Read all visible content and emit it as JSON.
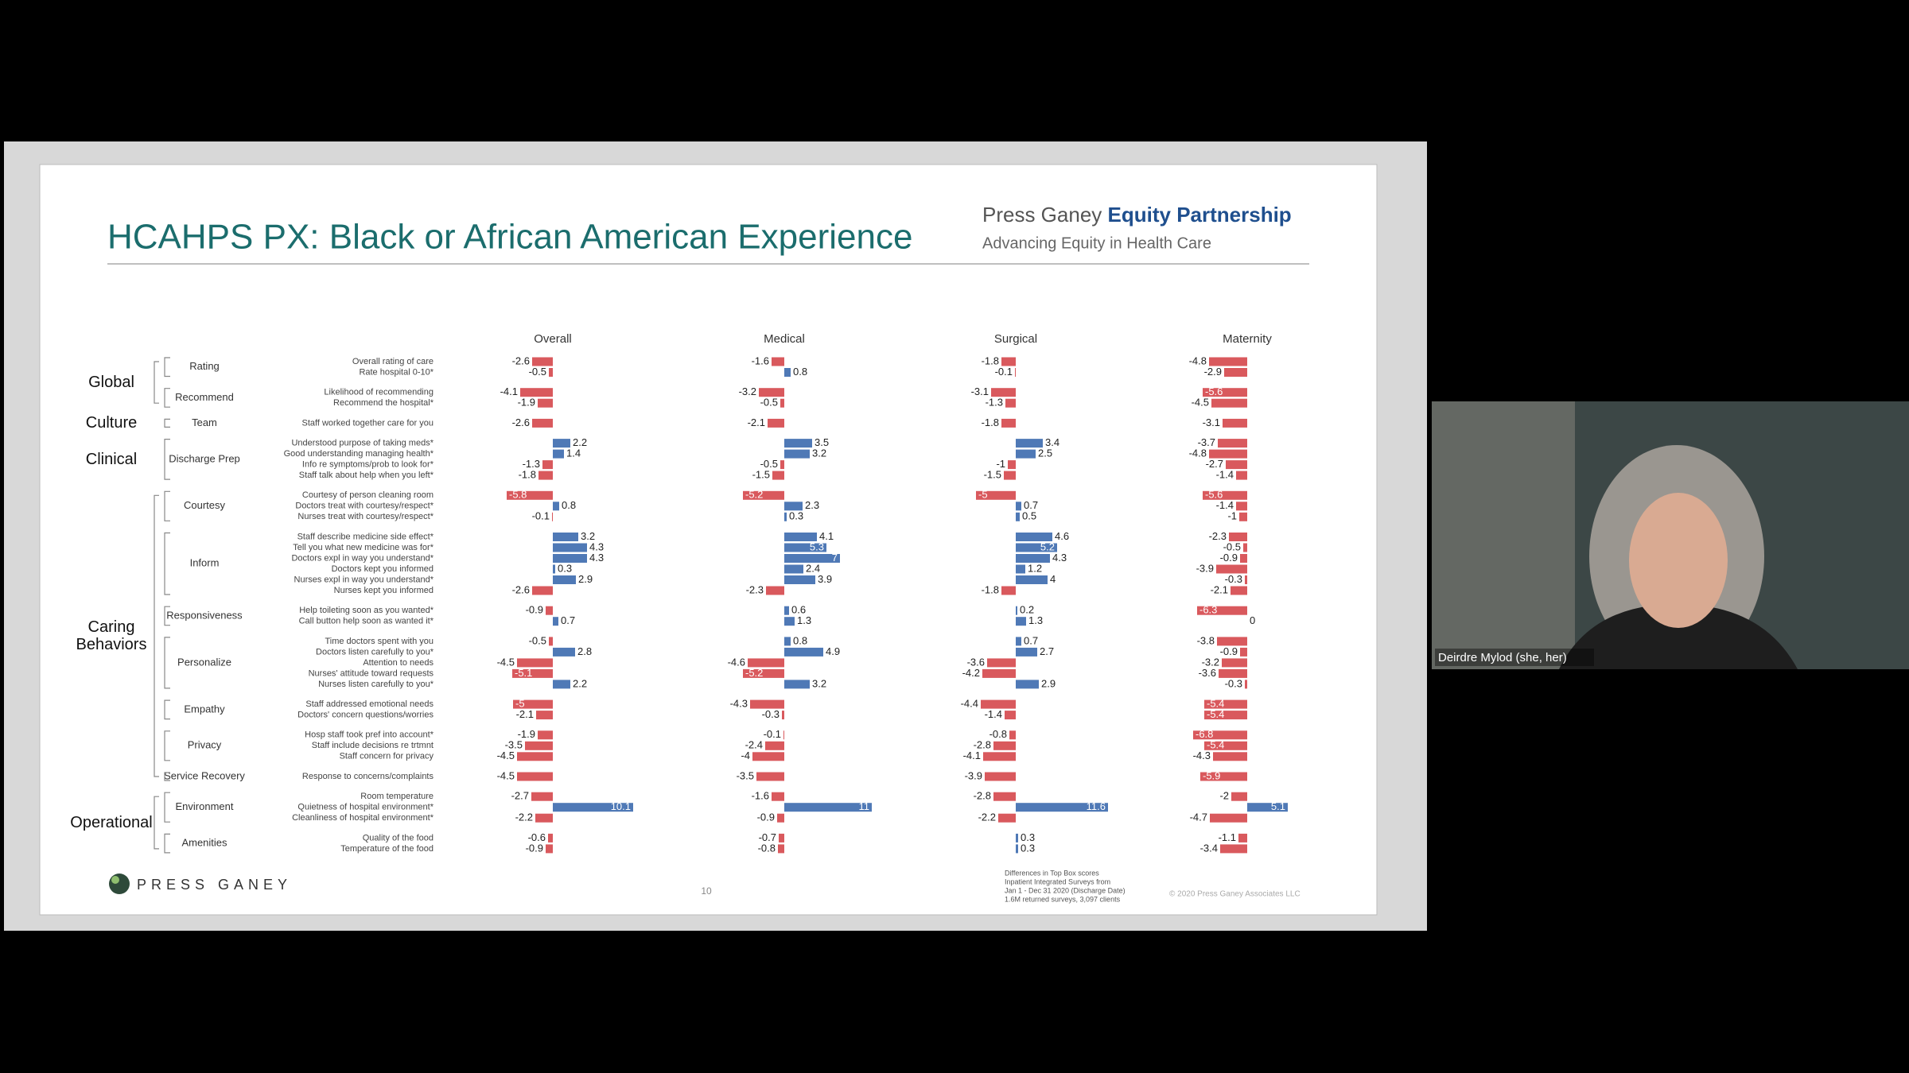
{
  "slide": {
    "title": "HCAHPS PX: Black or African American Experience",
    "brand": {
      "name": "Press Ganey",
      "program": "Equity Partnership",
      "tagline": "Advancing Equity in Health Care"
    },
    "logo": "PRESS GANEY",
    "page_number": "10",
    "footnote": [
      "Differences in Top Box scores",
      "Inpatient Integrated Surveys from",
      "Jan 1 - Dec 31 2020 (Discharge Date)",
      "1.6M returned surveys, 3,097 clients"
    ],
    "copyright": "© 2020 Press Ganey Associates LLC"
  },
  "groups": [
    {
      "label": "Global",
      "subgroups": [
        {
          "label": "Rating",
          "items": [
            "Overall rating of care",
            "Rate hospital 0-10*"
          ]
        },
        {
          "label": "Recommend",
          "items": [
            "Likelihood of recommending",
            "Recommend the hospital*"
          ]
        }
      ]
    },
    {
      "label": "Culture",
      "subgroups": [
        {
          "label": "Team",
          "items": [
            "Staff worked together care for you"
          ]
        }
      ]
    },
    {
      "label": "Clinical",
      "subgroups": [
        {
          "label": "Discharge Prep",
          "items": [
            "Understood purpose of taking meds*",
            "Good understanding managing health*",
            "Info re symptoms/prob to look for*",
            "Staff talk about help when you left*"
          ]
        }
      ]
    },
    {
      "label": "Caring Behaviors",
      "subgroups": [
        {
          "label": "Courtesy",
          "items": [
            "Courtesy of person cleaning room",
            "Doctors treat with courtesy/respect*",
            "Nurses treat with courtesy/respect*"
          ]
        },
        {
          "label": "Inform",
          "items": [
            "Staff describe medicine side effect*",
            "Tell you what new medicine was for*",
            "Doctors expl in way you understand*",
            "Doctors kept you informed",
            "Nurses expl in way you understand*",
            "Nurses kept you informed"
          ]
        },
        {
          "label": "Responsiveness",
          "items": [
            "Help toileting soon as you wanted*",
            "Call button help soon as wanted it*"
          ]
        },
        {
          "label": "Personalize",
          "items": [
            "Time doctors spent with you",
            "Doctors listen carefully to you*",
            "Attention to needs",
            "Nurses' attitude toward requests",
            "Nurses listen carefully to you*"
          ]
        },
        {
          "label": "Empathy",
          "items": [
            "Staff addressed emotional needs",
            "Doctors' concern questions/worries"
          ]
        },
        {
          "label": "Privacy",
          "items": [
            "Hosp staff took pref into account*",
            "Staff include decisions re trtmnt",
            "Staff concern for privacy"
          ]
        },
        {
          "label": "Service Recovery",
          "items": [
            "Response to concerns/complaints"
          ]
        }
      ]
    },
    {
      "label": "Operational",
      "subgroups": [
        {
          "label": "Environment",
          "items": [
            "Room temperature",
            "Quietness of hospital environment*",
            "Cleanliness of hospital environment*"
          ]
        },
        {
          "label": "Amenities",
          "items": [
            "Quality of the food",
            "Temperature of the food"
          ]
        }
      ]
    }
  ],
  "chart_data": [
    {
      "type": "bar",
      "title": "Overall",
      "xlim": [
        -7,
        12
      ],
      "negative_color": "#d9595d",
      "positive_color": "#4f79b6",
      "values": [
        -2.6,
        -0.5,
        -4.1,
        -1.9,
        -2.6,
        2.2,
        1.4,
        -1.3,
        -1.8,
        -5.8,
        0.8,
        -0.1,
        3.2,
        4.3,
        4.3,
        0.3,
        2.9,
        -2.6,
        -0.9,
        0.7,
        -0.5,
        2.8,
        -4.5,
        -5.1,
        2.2,
        -5,
        -2.1,
        -1.9,
        -3.5,
        -4.5,
        -4.5,
        -2.7,
        10.1,
        -2.2,
        -0.6,
        -0.9
      ]
    },
    {
      "type": "bar",
      "title": "Medical",
      "xlim": [
        -7,
        12
      ],
      "negative_color": "#d9595d",
      "positive_color": "#4f79b6",
      "values": [
        -1.6,
        0.8,
        -3.2,
        -0.5,
        -2.1,
        3.5,
        3.2,
        -0.5,
        -1.5,
        -5.2,
        2.3,
        0.3,
        4.1,
        5.3,
        7,
        2.4,
        3.9,
        -2.3,
        0.6,
        1.3,
        0.8,
        4.9,
        -4.6,
        -5.2,
        3.2,
        -4.3,
        -0.3,
        -0.1,
        -2.4,
        -4,
        -3.5,
        -1.6,
        11,
        -0.9,
        -0.7,
        -0.8
      ]
    },
    {
      "type": "bar",
      "title": "Surgical",
      "xlim": [
        -7,
        12
      ],
      "negative_color": "#d9595d",
      "positive_color": "#4f79b6",
      "values": [
        -1.8,
        -0.1,
        -3.1,
        -1.3,
        -1.8,
        3.4,
        2.5,
        -1,
        -1.5,
        -5,
        0.7,
        0.5,
        4.6,
        5.2,
        4.3,
        1.2,
        4,
        -1.8,
        0.2,
        1.3,
        0.7,
        2.7,
        -3.6,
        -4.2,
        2.9,
        -4.4,
        -1.4,
        -0.8,
        -2.8,
        -4.1,
        -3.9,
        -2.8,
        11.6,
        -2.2,
        0.3,
        0.3
      ]
    },
    {
      "type": "bar",
      "title": "Maternity",
      "xlim": [
        -7,
        12
      ],
      "negative_color": "#d9595d",
      "positive_color": "#4f79b6",
      "values": [
        -4.8,
        -2.9,
        -5.6,
        -4.5,
        -3.1,
        -3.7,
        -4.8,
        -2.7,
        -1.4,
        -5.6,
        -1.4,
        -1,
        -2.3,
        -0.5,
        -0.9,
        -3.9,
        -0.3,
        -2.1,
        -6.3,
        0,
        -3.8,
        -0.9,
        -3.2,
        -3.6,
        -0.3,
        -5.4,
        -5.4,
        -6.8,
        -5.4,
        -4.3,
        -5.9,
        -2,
        5.1,
        -4.7,
        -1.1,
        -3.4
      ]
    }
  ],
  "participant": {
    "name": "Deirdre Mylod (she, her)"
  }
}
